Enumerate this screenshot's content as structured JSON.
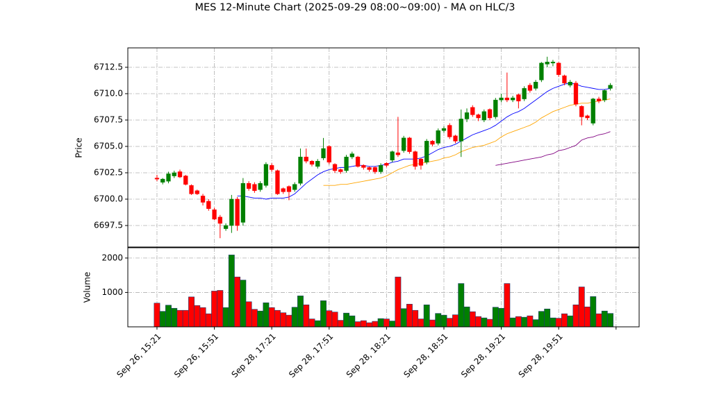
{
  "chart_data": [
    {
      "type": "candlestick",
      "title": "MES 12-Minute Chart (2025-09-29 08:00~09:00) - MA on HLC/3",
      "ylabel": "Price",
      "up_color": "#008000",
      "down_color": "#ff0000",
      "grid": true,
      "xlim": [
        -5.08,
        84.02
      ],
      "ylim": [
        6695.46,
        6714.34
      ],
      "yticks": [
        6697.5,
        {
          "value": 6700,
          "label": "6700.0"
        },
        6702.5,
        {
          "value": 6705,
          "label": "6705.0"
        },
        6707.5,
        {
          "value": 6710,
          "label": "6710.0"
        },
        6712.5
      ],
      "open": [
        6702.0,
        6701.6,
        6701.7,
        6702.2,
        6702.6,
        6702.2,
        6701.3,
        6700.8,
        6700.3,
        6699.8,
        6699.0,
        6698.3,
        6697.2,
        6697.5,
        6700.0,
        6697.8,
        6701.5,
        6701.4,
        6700.9,
        6701.3,
        6703.2,
        6702.7,
        6701.0,
        6701.2,
        6700.9,
        6701.5,
        6704.0,
        6703.6,
        6703.1,
        6703.9,
        6705.0,
        6703.3,
        6702.8,
        6702.7,
        6704.0,
        6704.0,
        6703.2,
        6703.0,
        6703.0,
        6702.6,
        6703.4,
        6703.7,
        6704.4,
        6704.6,
        6705.8,
        6704.5,
        6703.8,
        6703.5,
        6705.5,
        6705.3,
        6706.5,
        6707.0,
        6706.0,
        6705.5,
        6707.6,
        6708.7,
        6708.0,
        6707.5,
        6708.5,
        6707.8,
        6709.4,
        6709.6,
        6709.4,
        6709.9,
        6709.5,
        6710.8,
        6710.5,
        6711.3,
        6712.8,
        6712.9,
        6712.9,
        6711.7,
        6710.8,
        6711.0,
        6708.8,
        6707.9,
        6707.2,
        6709.5,
        6709.4,
        6710.5
      ],
      "high": [
        6702.3,
        6702.0,
        6702.6,
        6702.7,
        6702.8,
        6702.3,
        6701.4,
        6700.9,
        6700.5,
        6700.0,
        6699.2,
        6698.5,
        6697.7,
        6700.4,
        6700.2,
        6702.0,
        6701.7,
        6701.6,
        6701.7,
        6703.5,
        6703.4,
        6702.8,
        6701.1,
        6701.3,
        6701.6,
        6704.8,
        6704.8,
        6703.7,
        6703.8,
        6705.8,
        6705.1,
        6703.4,
        6702.9,
        6704.2,
        6704.5,
        6704.1,
        6703.3,
        6703.1,
        6703.1,
        6703.4,
        6703.5,
        6704.6,
        6707.8,
        6706.0,
        6705.9,
        6704.6,
        6703.9,
        6705.7,
        6705.6,
        6706.7,
        6706.9,
        6707.2,
        6706.1,
        6708.5,
        6708.6,
        6708.9,
        6708.1,
        6708.5,
        6708.6,
        6709.6,
        6710.0,
        6712.0,
        6709.8,
        6710.0,
        6710.7,
        6711.0,
        6711.3,
        6713.0,
        6713.5,
        6713.2,
        6713.0,
        6711.8,
        6711.3,
        6711.2,
        6708.9,
        6708.0,
        6709.6,
        6709.7,
        6710.4,
        6711.0
      ],
      "low": [
        6701.7,
        6701.4,
        6701.5,
        6702.0,
        6702.0,
        6701.3,
        6700.4,
        6700.4,
        6699.4,
        6698.9,
        6698.0,
        6696.3,
        6697.0,
        6696.8,
        6697.0,
        6697.5,
        6700.8,
        6700.6,
        6700.7,
        6701.1,
        6702.6,
        6700.4,
        6700.5,
        6699.9,
        6700.7,
        6701.3,
        6703.4,
        6703.1,
        6702.9,
        6703.7,
        6703.3,
        6702.5,
        6702.4,
        6702.5,
        6703.8,
        6703.0,
        6702.8,
        6702.6,
        6702.4,
        6702.4,
        6703.0,
        6703.5,
        6704.0,
        6704.4,
        6704.3,
        6702.8,
        6702.8,
        6703.3,
        6705.0,
        6705.1,
        6706.3,
        6705.7,
        6705.3,
        6704.0,
        6707.3,
        6707.8,
        6707.4,
        6707.3,
        6707.5,
        6707.6,
        6709.2,
        6709.2,
        6709.2,
        6708.6,
        6709.3,
        6710.1,
        6710.3,
        6711.1,
        6712.5,
        6712.6,
        6711.6,
        6710.8,
        6710.6,
        6708.8,
        6707.0,
        6707.5,
        6707.0,
        6709.1,
        6709.2,
        6710.3
      ],
      "close": [
        6701.9,
        6701.9,
        6702.4,
        6702.5,
        6702.1,
        6701.4,
        6700.5,
        6700.5,
        6699.7,
        6699.1,
        6698.1,
        6697.7,
        6697.5,
        6700.0,
        6697.5,
        6701.5,
        6701.0,
        6700.8,
        6701.5,
        6703.3,
        6702.8,
        6700.5,
        6700.7,
        6700.7,
        6701.4,
        6704.0,
        6703.6,
        6703.3,
        6703.6,
        6704.8,
        6703.5,
        6702.7,
        6702.6,
        6704.0,
        6704.3,
        6703.1,
        6703.0,
        6702.8,
        6702.6,
        6703.2,
        6703.2,
        6704.5,
        6704.2,
        6705.8,
        6704.5,
        6703.1,
        6703.2,
        6705.5,
        6705.2,
        6706.5,
        6706.7,
        6705.9,
        6705.5,
        6707.6,
        6708.2,
        6708.0,
        6707.7,
        6708.3,
        6707.7,
        6709.4,
        6709.6,
        6709.4,
        6709.6,
        6709.3,
        6710.5,
        6710.3,
        6711.1,
        6712.9,
        6713.0,
        6713.0,
        6711.8,
        6711.0,
        6711.1,
        6709.0,
        6707.8,
        6707.7,
        6709.5,
        6709.3,
        6710.3,
        6710.8
      ],
      "series": [
        {
          "color": "#0000ff",
          "values": [
            null,
            null,
            null,
            null,
            null,
            null,
            null,
            null,
            null,
            null,
            null,
            null,
            null,
            null,
            6700.3,
            6700.3,
            6700.2,
            6700.1,
            6700.1,
            6700.0,
            6700.1,
            6700.1,
            6700.1,
            6700.2,
            6700.5,
            6701.0,
            6701.5,
            6701.9,
            6702.3,
            6702.6,
            6702.8,
            6702.9,
            6703.0,
            6703.0,
            6703.1,
            6703.2,
            6703.2,
            6703.1,
            6703.1,
            6703.2,
            6703.3,
            6703.5,
            6703.6,
            6703.8,
            6703.8,
            6703.8,
            6703.9,
            6704.1,
            6704.4,
            6704.7,
            6704.9,
            6705.0,
            6705.2,
            6705.5,
            6705.8,
            6706.1,
            6706.3,
            6706.5,
            6706.7,
            6707.0,
            6707.4,
            6707.8,
            6708.1,
            6708.3,
            6708.6,
            6709.0,
            6709.4,
            6709.8,
            6710.2,
            6710.5,
            6710.7,
            6710.9,
            6711.0,
            6710.9,
            6710.7,
            6710.6,
            6710.5,
            6710.4,
            6710.4,
            6710.5
          ]
        },
        {
          "color": "#ffa500",
          "values": [
            null,
            null,
            null,
            null,
            null,
            null,
            null,
            null,
            null,
            null,
            null,
            null,
            null,
            null,
            null,
            null,
            null,
            null,
            null,
            null,
            null,
            null,
            null,
            null,
            null,
            null,
            null,
            null,
            null,
            6701.3,
            6701.3,
            6701.3,
            6701.4,
            6701.4,
            6701.5,
            6701.6,
            6701.7,
            6701.8,
            6701.9,
            6702.0,
            6702.2,
            6702.5,
            6702.8,
            6703.0,
            6703.2,
            6703.3,
            6703.4,
            6703.5,
            6703.6,
            6703.7,
            6703.9,
            6704.0,
            6704.2,
            6704.5,
            6704.7,
            6704.9,
            6705.0,
            6705.1,
            6705.3,
            6705.5,
            6705.9,
            6706.2,
            6706.4,
            6706.6,
            6706.8,
            6707.0,
            6707.3,
            6707.7,
            6708.0,
            6708.3,
            6708.5,
            6708.7,
            6708.9,
            6709.0,
            6709.1,
            6709.1,
            6709.2,
            6709.3,
            6709.4,
            6709.5
          ]
        },
        {
          "color": "#800080",
          "values": [
            null,
            null,
            null,
            null,
            null,
            null,
            null,
            null,
            null,
            null,
            null,
            null,
            null,
            null,
            null,
            null,
            null,
            null,
            null,
            null,
            null,
            null,
            null,
            null,
            null,
            null,
            null,
            null,
            null,
            null,
            null,
            null,
            null,
            null,
            null,
            null,
            null,
            null,
            null,
            null,
            null,
            null,
            null,
            null,
            null,
            null,
            null,
            null,
            null,
            null,
            null,
            null,
            null,
            null,
            null,
            null,
            null,
            null,
            null,
            6703.2,
            6703.3,
            6703.4,
            6703.5,
            6703.6,
            6703.7,
            6703.8,
            6703.9,
            6704.0,
            6704.2,
            6704.3,
            6704.6,
            6704.7,
            6704.9,
            6705.1,
            6705.6,
            6705.8,
            6705.9,
            6706.1,
            6706.2,
            6706.4
          ]
        }
      ]
    },
    {
      "type": "bar",
      "ylabel": "Volume",
      "grid": true,
      "xlim": [
        -5.08,
        84.02
      ],
      "ylim": [
        0,
        2300
      ],
      "yticks": [
        1000,
        2000
      ],
      "xticks": [
        {
          "value": 0,
          "label": "Sep 26, 15:21"
        },
        {
          "value": 10,
          "label": "Sep 26, 15:51"
        },
        {
          "value": 20,
          "label": "Sep 28, 17:21"
        },
        {
          "value": 30,
          "label": "Sep 28, 17:51"
        },
        {
          "value": 40,
          "label": "Sep 28, 18:21"
        },
        {
          "value": 50,
          "label": "Sep 28, 18:51"
        },
        {
          "value": 60,
          "label": "Sep 28, 19:21"
        },
        {
          "value": 70,
          "label": "Sep 28, 19:51"
        },
        {
          "value": 80,
          "label": null
        }
      ],
      "values": [
        690,
        450,
        630,
        540,
        480,
        480,
        870,
        620,
        560,
        380,
        1040,
        1060,
        560,
        2090,
        1450,
        1360,
        730,
        510,
        460,
        700,
        560,
        480,
        410,
        340,
        570,
        900,
        640,
        230,
        180,
        760,
        470,
        430,
        190,
        400,
        320,
        150,
        180,
        120,
        160,
        240,
        230,
        170,
        1450,
        530,
        660,
        480,
        230,
        640,
        200,
        390,
        340,
        250,
        350,
        1260,
        580,
        440,
        300,
        260,
        220,
        570,
        540,
        1260,
        260,
        300,
        280,
        320,
        210,
        450,
        520,
        260,
        250,
        380,
        320,
        640,
        1160,
        580,
        880,
        380,
        460,
        390
      ]
    }
  ]
}
